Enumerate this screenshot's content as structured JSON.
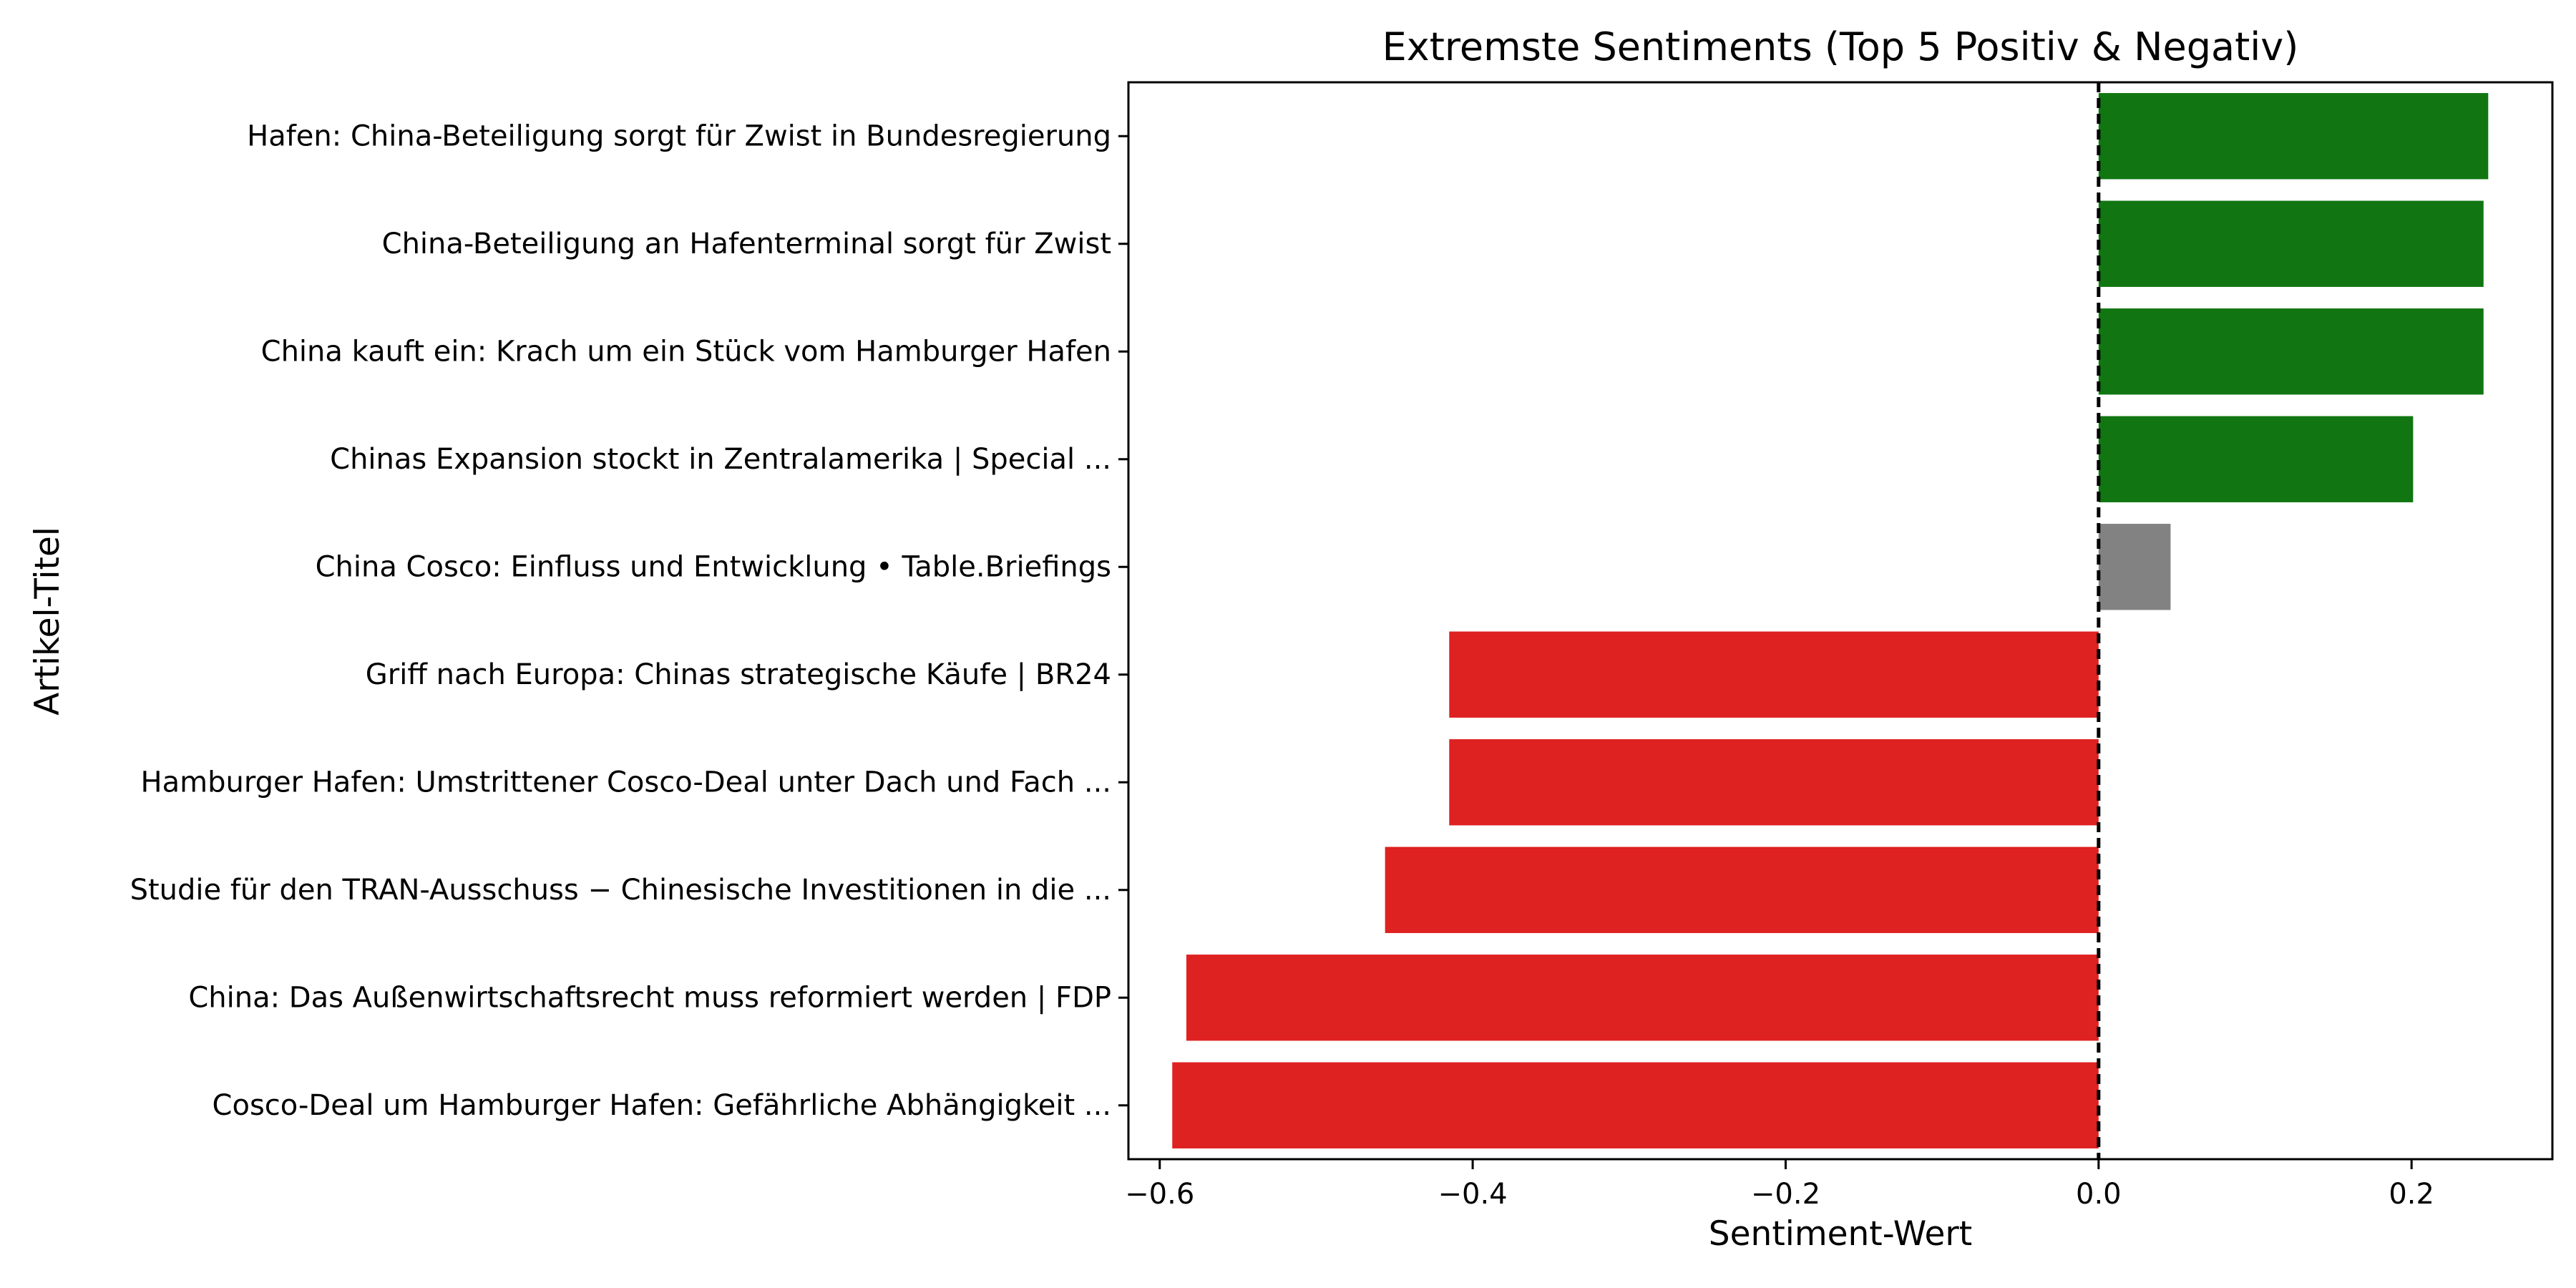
{
  "chart_data": {
    "type": "bar",
    "orientation": "horizontal",
    "title": "Extremste Sentiments (Top 5 Positiv & Negativ)",
    "xlabel": "Sentiment-Wert",
    "ylabel": "Artikel-Titel",
    "xlim": [
      -0.62,
      0.29
    ],
    "x_ticks": [
      -0.6,
      -0.4,
      -0.2,
      0.0,
      0.2
    ],
    "x_tick_labels": [
      "−0.6",
      "−0.4",
      "−0.2",
      "0.0",
      "0.2"
    ],
    "reference_line": {
      "x": 0.0,
      "style": "dashed",
      "color": "#000000"
    },
    "grid": false,
    "categories": [
      "Hafen: China-Beteiligung sorgt für Zwist in Bundesregierung",
      "China-Beteiligung an Hafenterminal sorgt für Zwist",
      "China kauft ein: Krach um ein Stück vom Hamburger Hafen",
      "Chinas Expansion stockt in Zentralamerika | Special ...",
      "China Cosco: Einfluss und Entwicklung • Table.Briefings",
      "Griff nach Europa: Chinas strategische Käufe | BR24",
      "Hamburger Hafen: Umstrittener Cosco-Deal unter Dach und Fach ...",
      "Studie für den TRAN-Ausschuss − Chinesische Investitionen in die ...",
      "China: Das Außenwirtschaftsrecht muss reformiert werden | FDP",
      "Cosco-Deal um Hamburger Hafen: Gefährliche Abhängigkeit ..."
    ],
    "values": [
      0.249,
      0.246,
      0.246,
      0.201,
      0.046,
      -0.415,
      -0.415,
      -0.456,
      -0.583,
      -0.592
    ],
    "colors": [
      "#117611",
      "#117611",
      "#117611",
      "#117611",
      "#828282",
      "#de2121",
      "#de2121",
      "#de2121",
      "#de2121",
      "#de2121"
    ]
  }
}
